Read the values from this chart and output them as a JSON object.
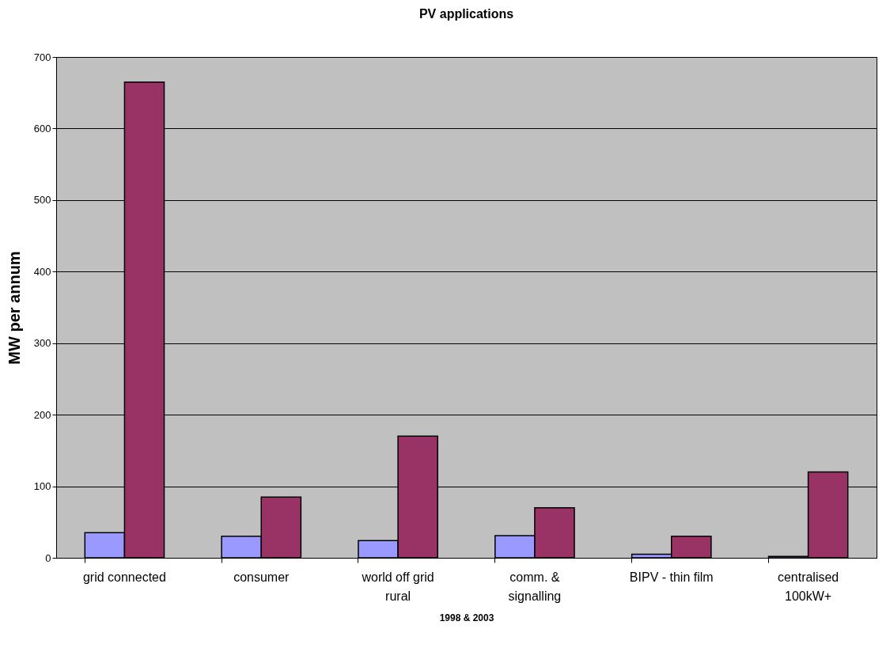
{
  "chart_data": {
    "type": "bar",
    "title": "PV applications",
    "xlabel": "1998 & 2003",
    "ylabel": "MW per annum",
    "categories": [
      "grid connected",
      "consumer",
      "world off grid rural",
      "comm. & signalling",
      "BIPV - thin film",
      "centralised 100kW+"
    ],
    "series": [
      {
        "color": "#9999ff",
        "values": [
          35,
          30,
          24,
          31,
          5,
          2
        ]
      },
      {
        "color": "#993366",
        "values": [
          665,
          85,
          170,
          70,
          30,
          120
        ]
      }
    ],
    "ylim": [
      0,
      700
    ],
    "yticks": [
      0,
      100,
      200,
      300,
      400,
      500,
      600,
      700
    ],
    "grid": "y"
  }
}
